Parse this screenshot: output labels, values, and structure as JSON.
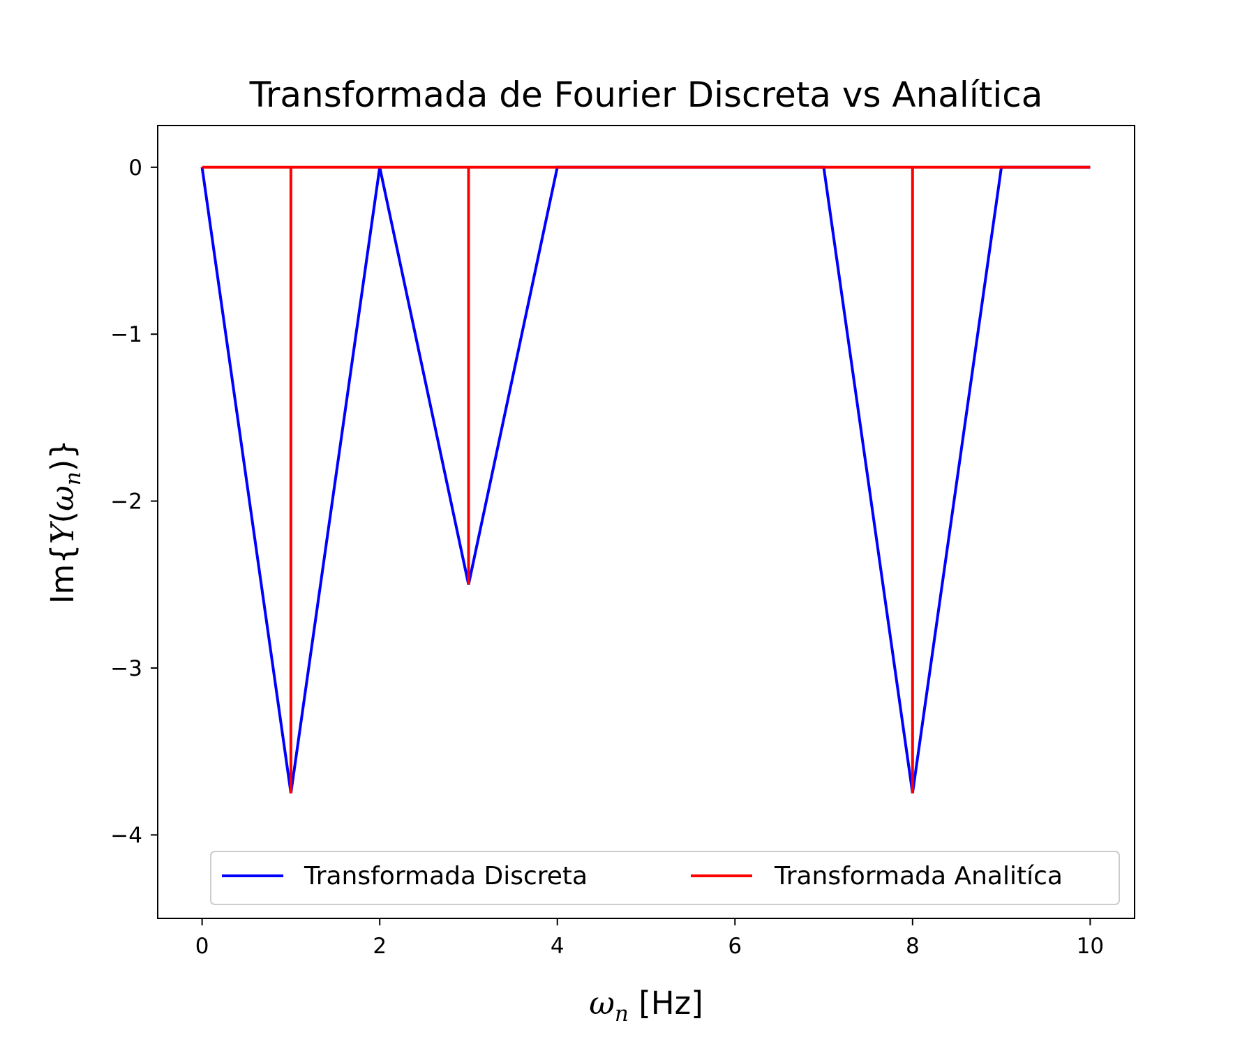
{
  "chart_data": {
    "type": "line",
    "title": "Transformada de Fourier Discreta vs Analítica",
    "xlabel": "ωn [Hz]",
    "ylabel": "Im{Y(ωn)}",
    "xlim": [
      -0.5,
      10.5
    ],
    "ylim": [
      -4.5,
      0.25
    ],
    "xticks": [
      0,
      2,
      4,
      6,
      8,
      10
    ],
    "xtick_labels": [
      "0",
      "2",
      "4",
      "6",
      "8",
      "10"
    ],
    "yticks": [
      0,
      -1,
      -2,
      -3,
      -4
    ],
    "ytick_labels": [
      "0",
      "−1",
      "−2",
      "−3",
      "−4"
    ],
    "grid": false,
    "legend_position": "lower center",
    "series": [
      {
        "name": "Transformada Discreta",
        "color": "#0000ff",
        "x": [
          0,
          1,
          2,
          3,
          4,
          5,
          6,
          7,
          8,
          9,
          10
        ],
        "y": [
          0,
          -3.75,
          0,
          -2.5,
          0,
          0,
          0,
          0,
          -3.75,
          0,
          0
        ]
      },
      {
        "name": "Transformada Analitíca",
        "color": "#ff0000",
        "x": [
          0,
          1,
          1,
          1,
          3,
          3,
          3,
          8,
          8,
          8,
          10
        ],
        "y": [
          0,
          0,
          -3.75,
          0,
          0,
          -2.5,
          0,
          0,
          -3.75,
          0,
          0
        ]
      }
    ]
  }
}
